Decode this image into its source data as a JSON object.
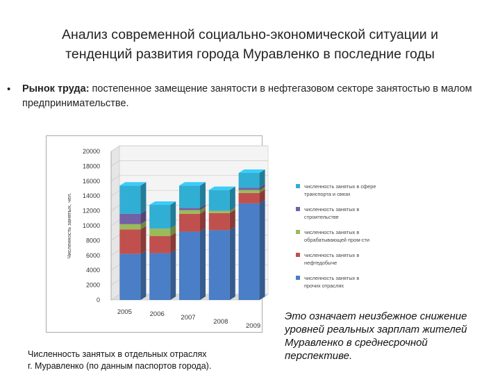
{
  "slide": {
    "title_line1": "Анализ современной социально-экономической ситуации и",
    "title_line2": "тенденций развития города Муравленко в последние годы",
    "bullet_symbol": "•",
    "bullet_bold": "Рынок труда:",
    "bullet_text": " постепенное замещение занятости в нефтегазовом секторе занятостью в малом предпринимательстве.",
    "caption_line1": "Численность занятых в отдельных отраслях",
    "caption_line2": "г. Муравленко  (по данным паспортов города).",
    "conclusion": "Это означает неизбежное снижение уровней реальных зарплат жителей Муравленко в среднесрочной перспективе."
  },
  "chart_data": {
    "type": "bar",
    "stacked": true,
    "style": "3d-column",
    "categories": [
      "2005",
      "2006",
      "2007",
      "2008",
      "2009"
    ],
    "ylabel": "Численность занятых, чел.",
    "ylim": [
      0,
      20000
    ],
    "yticks": [
      "0",
      "2000",
      "4000",
      "6000",
      "8000",
      "10000",
      "12000",
      "14000",
      "16000",
      "18000",
      "20000"
    ],
    "grid": true,
    "legend_position": "right",
    "series": [
      {
        "name": "численность занятых в прочих отраслях",
        "color": "#4a7ec6",
        "values": [
          6200,
          6300,
          9200,
          9400,
          13000
        ]
      },
      {
        "name": "численность занятых в нефтедобыче",
        "color": "#c0504d",
        "values": [
          3300,
          2300,
          2400,
          2300,
          1400
        ]
      },
      {
        "name": "численность занятых в обрабатывающей пром-сти",
        "color": "#9bbb59",
        "values": [
          700,
          1000,
          500,
          300,
          400
        ]
      },
      {
        "name": "численность занятых в строительстве",
        "color": "#7460a4",
        "values": [
          1400,
          0,
          300,
          0,
          300
        ]
      },
      {
        "name": "численность занятых в сфере транспорта и связи",
        "color": "#31aed3",
        "values": [
          3800,
          3200,
          3000,
          2800,
          2000
        ]
      }
    ]
  }
}
